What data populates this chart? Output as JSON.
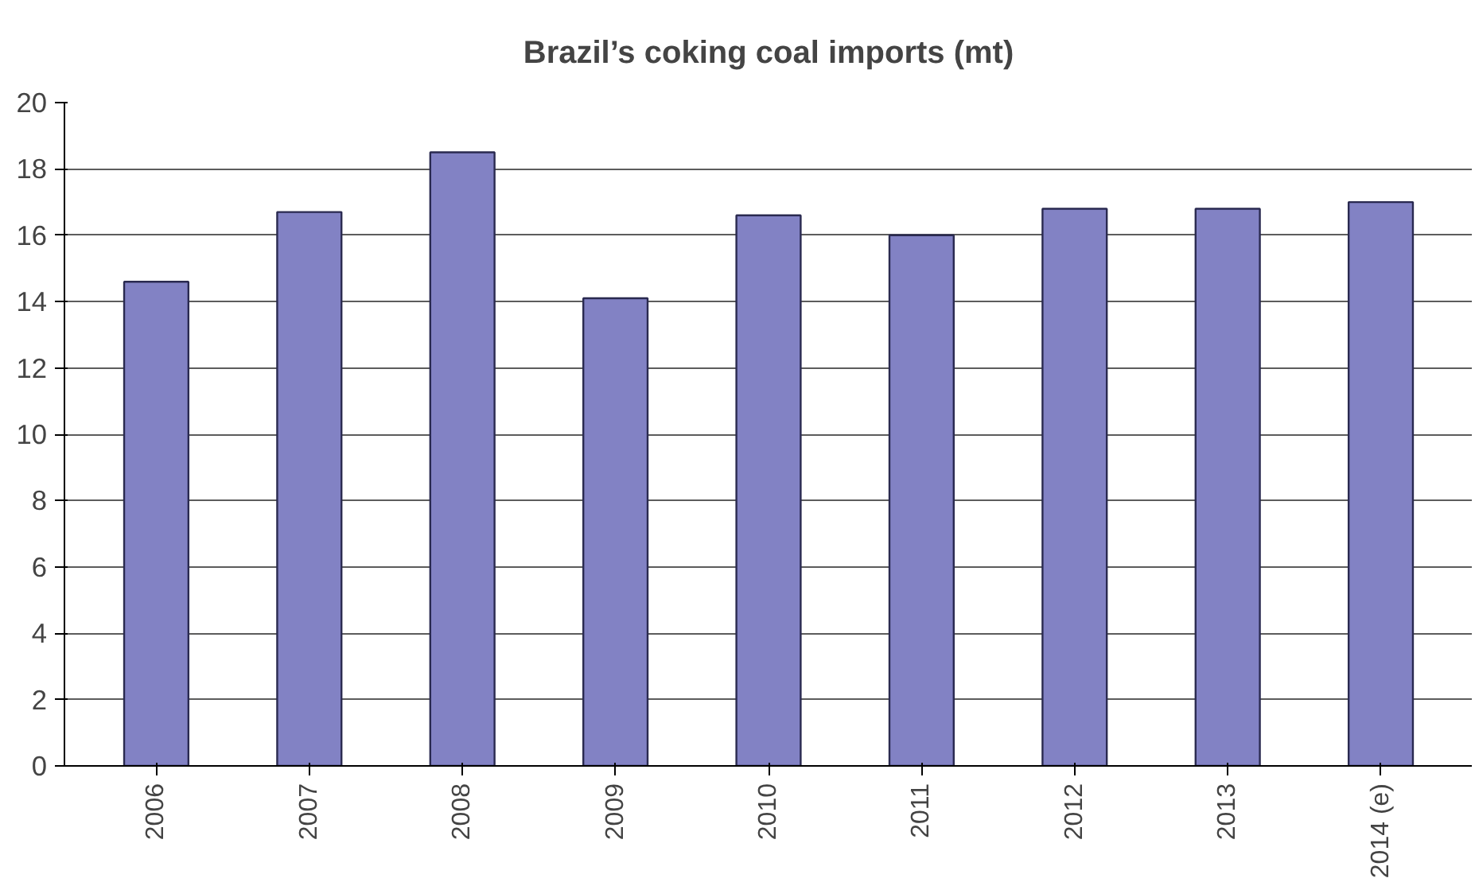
{
  "chart_data": {
    "type": "bar",
    "title": "Brazil’s coking coal imports (mt)",
    "categories": [
      "2006",
      "2007",
      "2008",
      "2009",
      "2010",
      "2011",
      "2012",
      "2013",
      "2014 (e)"
    ],
    "values": [
      14.6,
      16.7,
      18.5,
      14.1,
      16.6,
      16.0,
      16.8,
      16.8,
      17.0
    ],
    "color": "#8282c4",
    "ylim": [
      0,
      20
    ],
    "yticks": [
      0,
      2,
      4,
      6,
      8,
      10,
      12,
      14,
      16,
      18,
      20
    ],
    "grid": "y"
  }
}
